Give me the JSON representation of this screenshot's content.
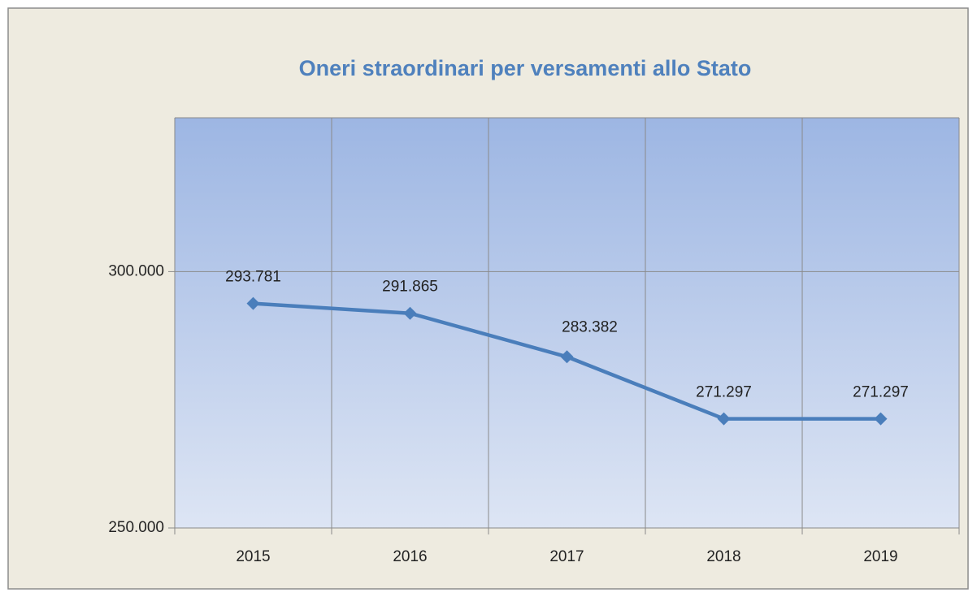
{
  "chart_data": {
    "type": "line",
    "title": "Oneri straordinari per versamenti allo Stato",
    "categories": [
      "2015",
      "2016",
      "2017",
      "2018",
      "2019"
    ],
    "series": [
      {
        "name": "Oneri straordinari",
        "color": "#4a7ebb",
        "values": [
          293781,
          291865,
          283382,
          271297,
          271297
        ],
        "value_labels": [
          "293.781",
          "291.865",
          "283.382",
          "271.297",
          "271.297"
        ]
      }
    ],
    "ylim": [
      250000,
      330000
    ],
    "yticks": [
      {
        "value": 250000,
        "label": "250.000"
      },
      {
        "value": 300000,
        "label": "300.000"
      }
    ],
    "grid": true
  }
}
